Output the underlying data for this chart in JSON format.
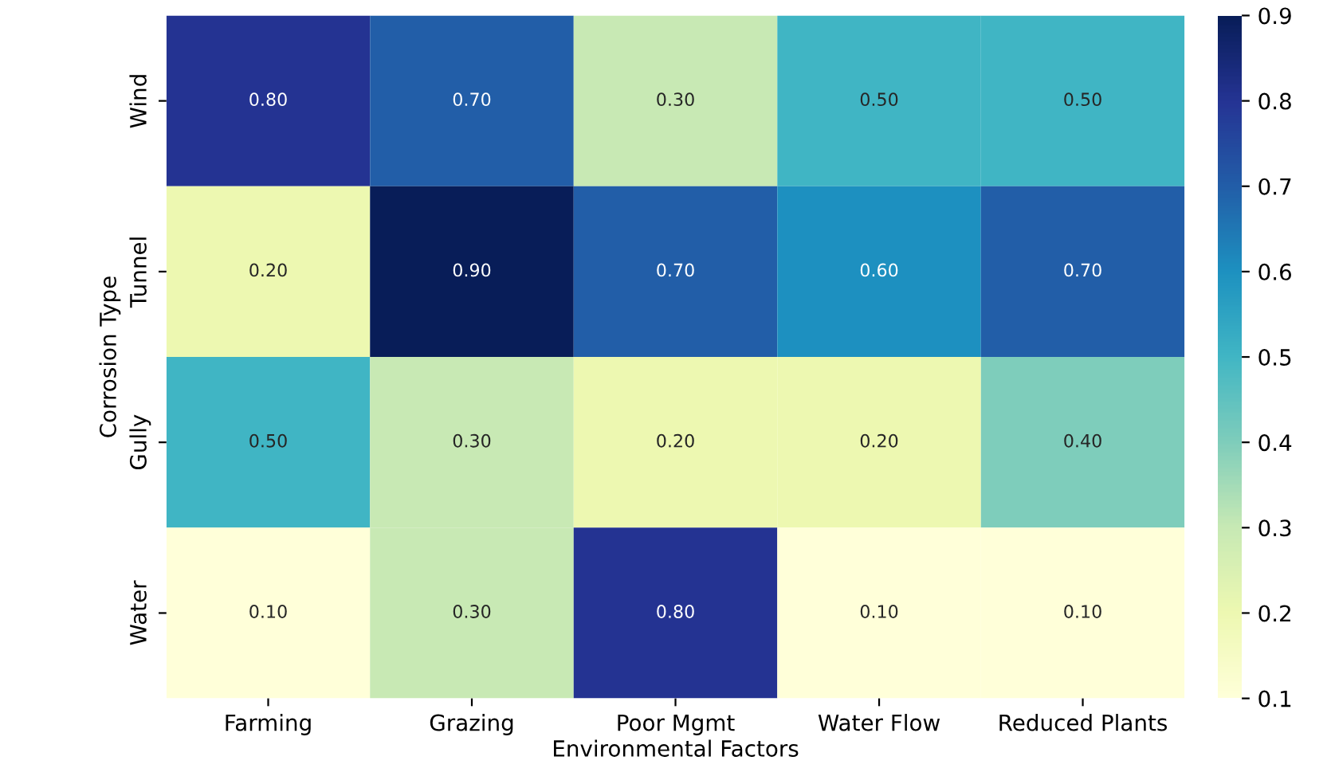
{
  "chart_data": {
    "type": "heatmap",
    "xlabel": "Environmental Factors",
    "ylabel": "Corrosion Type",
    "categories": [
      "Farming",
      "Grazing",
      "Poor Mgmt",
      "Water Flow",
      "Reduced Plants"
    ],
    "y_categories": [
      "Wind",
      "Tunnel",
      "Gully",
      "Water"
    ],
    "cells": [
      [
        0.8,
        0.7,
        0.3,
        0.5,
        0.5
      ],
      [
        0.2,
        0.9,
        0.7,
        0.6,
        0.7
      ],
      [
        0.5,
        0.3,
        0.2,
        0.2,
        0.4
      ],
      [
        0.1,
        0.3,
        0.8,
        0.1,
        0.1
      ]
    ],
    "cell_labels": [
      [
        "0.80",
        "0.70",
        "0.30",
        "0.50",
        "0.50"
      ],
      [
        "0.20",
        "0.90",
        "0.70",
        "0.60",
        "0.70"
      ],
      [
        "0.50",
        "0.30",
        "0.20",
        "0.20",
        "0.40"
      ],
      [
        "0.10",
        "0.30",
        "0.80",
        "0.10",
        "0.10"
      ]
    ],
    "clim": [
      0.1,
      0.9
    ],
    "cticks": [
      0.1,
      0.2,
      0.3,
      0.4,
      0.5,
      0.6,
      0.7,
      0.8,
      0.9
    ]
  }
}
